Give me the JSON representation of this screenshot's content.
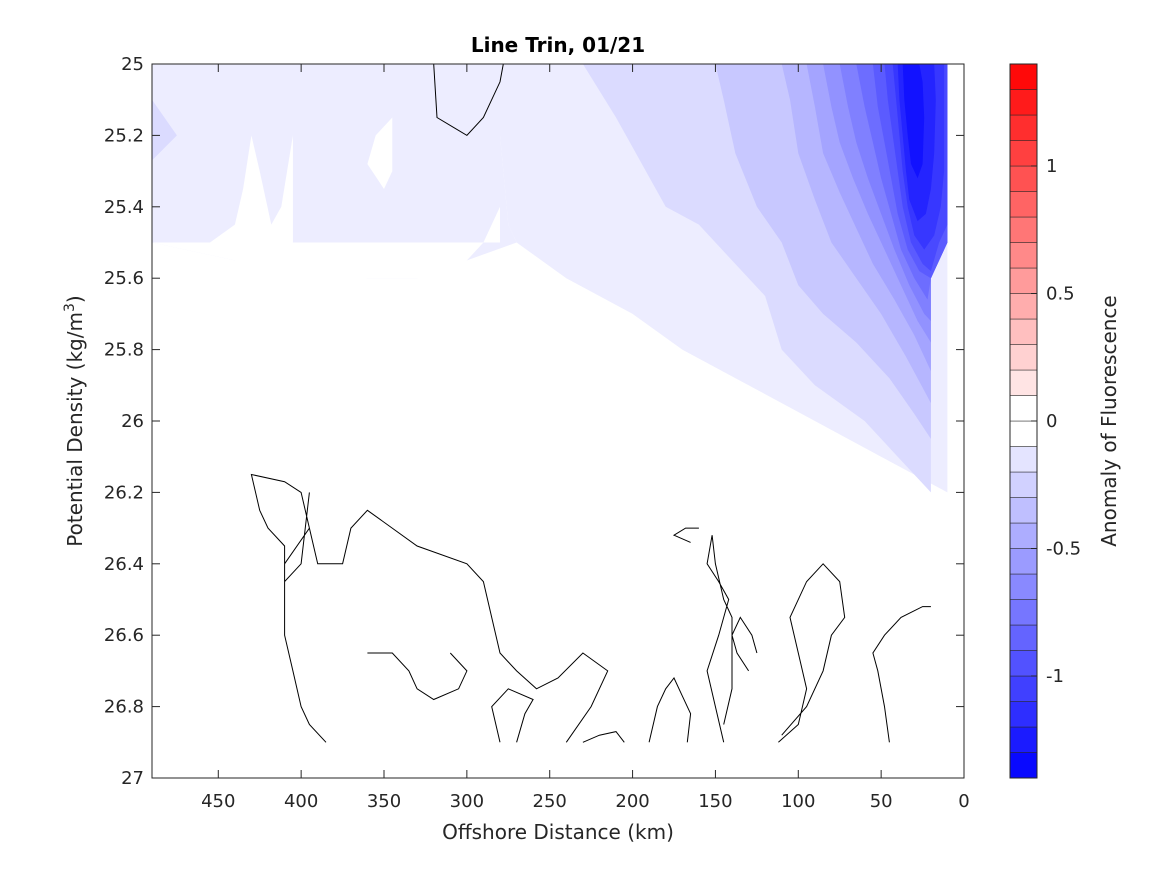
{
  "chart_data": {
    "type": "heatmap",
    "title": "Line Trin, 01/21",
    "xlabel": "Offshore Distance (km)",
    "ylabel": "Potential Density (kg/m",
    "ylabel_sup": "3",
    "ylabel_close": ")",
    "xlim": [
      490,
      0
    ],
    "ylim": [
      25,
      27
    ],
    "x_reversed": true,
    "y_reversed": true,
    "x_ticks": [
      450,
      400,
      350,
      300,
      250,
      200,
      150,
      100,
      50,
      0
    ],
    "y_ticks": [
      25,
      25.2,
      25.4,
      25.6,
      25.8,
      26,
      26.2,
      26.4,
      26.6,
      26.8,
      27
    ],
    "x_tick_labels": [
      "450",
      "400",
      "350",
      "300",
      "250",
      "200",
      "150",
      "100",
      "50",
      "0"
    ],
    "y_tick_labels": [
      "25",
      "25.2",
      "25.4",
      "25.6",
      "25.8",
      "26",
      "26.2",
      "26.4",
      "26.6",
      "26.8",
      "27"
    ],
    "grid": false,
    "colorbar": {
      "label": "Anomaly of Fluorescence",
      "limits": [
        -1.4,
        1.4
      ],
      "ticks": [
        -1,
        -0.5,
        0,
        0.5,
        1
      ],
      "tick_labels": [
        "-1",
        "-0.5",
        "0",
        "0.5",
        "1"
      ],
      "levels": 28,
      "negative_color": "#0000ff",
      "positive_color": "#ff0000",
      "neutral_color": "#ffffff"
    },
    "filled_regions": [
      {
        "level": -0.1,
        "points": [
          [
            490,
            25
          ],
          [
            280,
            25
          ],
          [
            280,
            25.2
          ],
          [
            275,
            25.45
          ],
          [
            270,
            25.5
          ],
          [
            300,
            25.55
          ],
          [
            330,
            25.6
          ],
          [
            360,
            25.6
          ],
          [
            400,
            25.58
          ],
          [
            440,
            25.55
          ],
          [
            490,
            25.5
          ]
        ]
      },
      {
        "level": -0.1,
        "points": [
          [
            280,
            25
          ],
          [
            10,
            25
          ],
          [
            10,
            26.2
          ],
          [
            50,
            26.1
          ],
          [
            90,
            26
          ],
          [
            130,
            25.9
          ],
          [
            170,
            25.8
          ],
          [
            200,
            25.7
          ],
          [
            240,
            25.6
          ],
          [
            270,
            25.5
          ],
          [
            275,
            25.45
          ],
          [
            280,
            25.2
          ]
        ]
      },
      {
        "level": -0.2,
        "points": [
          [
            490,
            25.1
          ],
          [
            475,
            25.2
          ],
          [
            490,
            25.27
          ]
        ]
      },
      {
        "level": -0.2,
        "points": [
          [
            230,
            25
          ],
          [
            210,
            25.15
          ],
          [
            180,
            25.4
          ],
          [
            160,
            25.45
          ],
          [
            140,
            25.55
          ],
          [
            120,
            25.65
          ],
          [
            110,
            25.8
          ],
          [
            90,
            25.9
          ],
          [
            60,
            26.0
          ],
          [
            40,
            26.1
          ],
          [
            20,
            26.2
          ],
          [
            20,
            25.6
          ],
          [
            10,
            25.5
          ],
          [
            10,
            25
          ]
        ]
      },
      {
        "level": -0.3,
        "points": [
          [
            150,
            25
          ],
          [
            145,
            25.1
          ],
          [
            138,
            25.25
          ],
          [
            125,
            25.4
          ],
          [
            110,
            25.5
          ],
          [
            100,
            25.62
          ],
          [
            85,
            25.7
          ],
          [
            65,
            25.78
          ],
          [
            45,
            25.88
          ],
          [
            30,
            25.98
          ],
          [
            20,
            26.05
          ],
          [
            20,
            25.6
          ],
          [
            10,
            25.5
          ],
          [
            10,
            25
          ]
        ]
      },
      {
        "level": -0.4,
        "points": [
          [
            110,
            25
          ],
          [
            105,
            25.1
          ],
          [
            100,
            25.25
          ],
          [
            90,
            25.38
          ],
          [
            80,
            25.5
          ],
          [
            65,
            25.6
          ],
          [
            50,
            25.7
          ],
          [
            35,
            25.82
          ],
          [
            20,
            25.95
          ],
          [
            20,
            25.6
          ],
          [
            10,
            25.5
          ],
          [
            10,
            25
          ]
        ]
      },
      {
        "level": -0.5,
        "points": [
          [
            95,
            25
          ],
          [
            90,
            25.12
          ],
          [
            85,
            25.25
          ],
          [
            75,
            25.36
          ],
          [
            65,
            25.46
          ],
          [
            55,
            25.56
          ],
          [
            42,
            25.66
          ],
          [
            30,
            25.76
          ],
          [
            20,
            25.86
          ],
          [
            20,
            25.6
          ],
          [
            10,
            25.5
          ],
          [
            10,
            25
          ]
        ]
      },
      {
        "level": -0.6,
        "points": [
          [
            85,
            25
          ],
          [
            80,
            25.12
          ],
          [
            75,
            25.22
          ],
          [
            67,
            25.32
          ],
          [
            58,
            25.42
          ],
          [
            48,
            25.52
          ],
          [
            38,
            25.62
          ],
          [
            28,
            25.72
          ],
          [
            20,
            25.78
          ],
          [
            20,
            25.6
          ],
          [
            10,
            25.5
          ],
          [
            10,
            25
          ]
        ]
      },
      {
        "level": -0.7,
        "points": [
          [
            75,
            25
          ],
          [
            70,
            25.12
          ],
          [
            65,
            25.22
          ],
          [
            58,
            25.32
          ],
          [
            50,
            25.42
          ],
          [
            42,
            25.52
          ],
          [
            33,
            25.62
          ],
          [
            24,
            25.7
          ],
          [
            20,
            25.72
          ],
          [
            20,
            25.6
          ],
          [
            10,
            25.5
          ],
          [
            10,
            25
          ]
        ]
      },
      {
        "level": -0.8,
        "points": [
          [
            65,
            25
          ],
          [
            60,
            25.12
          ],
          [
            55,
            25.22
          ],
          [
            50,
            25.32
          ],
          [
            44,
            25.42
          ],
          [
            38,
            25.52
          ],
          [
            30,
            25.6
          ],
          [
            22,
            25.66
          ],
          [
            20,
            25.6
          ],
          [
            10,
            25.5
          ],
          [
            10,
            25
          ]
        ]
      },
      {
        "level": -0.9,
        "points": [
          [
            55,
            25
          ],
          [
            52,
            25.12
          ],
          [
            48,
            25.22
          ],
          [
            44,
            25.32
          ],
          [
            40,
            25.42
          ],
          [
            34,
            25.52
          ],
          [
            27,
            25.58
          ],
          [
            20,
            25.6
          ],
          [
            10,
            25.5
          ],
          [
            10,
            25
          ]
        ]
      },
      {
        "level": -1.0,
        "points": [
          [
            48,
            25
          ],
          [
            46,
            25.1
          ],
          [
            43,
            25.2
          ],
          [
            40,
            25.3
          ],
          [
            37,
            25.4
          ],
          [
            32,
            25.5
          ],
          [
            25,
            25.56
          ],
          [
            20,
            25.58
          ],
          [
            15,
            25.5
          ],
          [
            10,
            25.45
          ],
          [
            10,
            25
          ]
        ]
      },
      {
        "level": -1.1,
        "points": [
          [
            43,
            25
          ],
          [
            41,
            25.1
          ],
          [
            39,
            25.2
          ],
          [
            37,
            25.3
          ],
          [
            34,
            25.4
          ],
          [
            30,
            25.48
          ],
          [
            24,
            25.52
          ],
          [
            18,
            25.48
          ],
          [
            14,
            25.4
          ],
          [
            12,
            25.3
          ],
          [
            12,
            25
          ]
        ]
      },
      {
        "level": -1.2,
        "points": [
          [
            40,
            25
          ],
          [
            39,
            25.1
          ],
          [
            37,
            25.2
          ],
          [
            35,
            25.3
          ],
          [
            33,
            25.38
          ],
          [
            28,
            25.44
          ],
          [
            23,
            25.42
          ],
          [
            20,
            25.35
          ],
          [
            18,
            25.25
          ],
          [
            17,
            25.1
          ],
          [
            18,
            25
          ]
        ]
      },
      {
        "level": -1.3,
        "points": [
          [
            37,
            25
          ],
          [
            36,
            25.1
          ],
          [
            34,
            25.2
          ],
          [
            32,
            25.28
          ],
          [
            28,
            25.32
          ],
          [
            25,
            25.28
          ],
          [
            24,
            25.15
          ],
          [
            25,
            25.05
          ],
          [
            27,
            25
          ]
        ]
      }
    ],
    "white_patches": [
      {
        "points": [
          [
            490,
            25.5
          ],
          [
            440,
            25.55
          ],
          [
            420,
            25.58
          ],
          [
            380,
            25.6
          ],
          [
            320,
            25.6
          ],
          [
            300,
            25.55
          ],
          [
            290,
            25.5
          ],
          [
            280,
            25.4
          ],
          [
            280,
            25.5
          ],
          [
            280,
            25.5
          ]
        ]
      },
      {
        "points": [
          [
            455,
            25.5
          ],
          [
            440,
            25.45
          ],
          [
            435,
            25.35
          ],
          [
            430,
            25.2
          ],
          [
            425,
            25.3
          ],
          [
            418,
            25.45
          ],
          [
            412,
            25.4
          ],
          [
            405,
            25.2
          ],
          [
            405,
            25.55
          ]
        ]
      },
      {
        "points": [
          [
            345,
            25.15
          ],
          [
            355,
            25.2
          ],
          [
            360,
            25.28
          ],
          [
            350,
            25.35
          ],
          [
            345,
            25.3
          ]
        ]
      }
    ],
    "contour_lines": [
      [
        [
          320,
          25
        ],
        [
          318,
          25.15
        ],
        [
          300,
          25.2
        ],
        [
          290,
          25.15
        ],
        [
          280,
          25.05
        ],
        [
          278,
          25
        ]
      ],
      [
        [
          360,
          26.65
        ],
        [
          345,
          26.65
        ],
        [
          335,
          26.7
        ],
        [
          330,
          26.75
        ],
        [
          320,
          26.78
        ],
        [
          305,
          26.75
        ],
        [
          300,
          26.7
        ],
        [
          310,
          26.65
        ]
      ],
      [
        [
          385,
          26.9
        ],
        [
          395,
          26.85
        ],
        [
          400,
          26.8
        ],
        [
          405,
          26.7
        ],
        [
          410,
          26.6
        ],
        [
          410,
          26.4
        ],
        [
          395,
          26.3
        ],
        [
          400,
          26.2
        ],
        [
          410,
          26.17
        ],
        [
          430,
          26.15
        ],
        [
          425,
          26.25
        ],
        [
          420,
          26.3
        ],
        [
          410,
          26.35
        ],
        [
          410,
          26.45
        ],
        [
          400,
          26.4
        ],
        [
          395,
          26.2
        ]
      ],
      [
        [
          270,
          26.9
        ],
        [
          265,
          26.82
        ],
        [
          260,
          26.78
        ],
        [
          275,
          26.75
        ],
        [
          285,
          26.8
        ],
        [
          280,
          26.9
        ]
      ],
      [
        [
          240,
          26.9
        ],
        [
          225,
          26.8
        ],
        [
          215,
          26.7
        ],
        [
          230,
          26.65
        ],
        [
          245,
          26.72
        ],
        [
          258,
          26.75
        ],
        [
          270,
          26.7
        ],
        [
          280,
          26.65
        ],
        [
          285,
          26.55
        ],
        [
          290,
          26.45
        ],
        [
          300,
          26.4
        ],
        [
          330,
          26.35
        ],
        [
          360,
          26.25
        ],
        [
          370,
          26.3
        ],
        [
          375,
          26.4
        ],
        [
          390,
          26.4
        ],
        [
          395,
          26.3
        ]
      ],
      [
        [
          130,
          26.7
        ],
        [
          137,
          26.65
        ],
        [
          140,
          26.6
        ],
        [
          135,
          26.55
        ],
        [
          128,
          26.6
        ],
        [
          125,
          26.65
        ]
      ],
      [
        [
          112,
          26.9
        ],
        [
          100,
          26.85
        ],
        [
          95,
          26.75
        ],
        [
          100,
          26.65
        ],
        [
          105,
          26.55
        ],
        [
          95,
          26.45
        ],
        [
          85,
          26.4
        ],
        [
          75,
          26.45
        ],
        [
          72,
          26.55
        ],
        [
          80,
          26.6
        ],
        [
          85,
          26.7
        ],
        [
          95,
          26.8
        ],
        [
          110,
          26.88
        ]
      ],
      [
        [
          160,
          26.3
        ],
        [
          168,
          26.3
        ],
        [
          175,
          26.32
        ],
        [
          165,
          26.34
        ]
      ],
      [
        [
          145,
          26.9
        ],
        [
          150,
          26.8
        ],
        [
          155,
          26.7
        ],
        [
          148,
          26.6
        ],
        [
          142,
          26.5
        ],
        [
          148,
          26.45
        ],
        [
          155,
          26.4
        ],
        [
          152,
          26.32
        ],
        [
          150,
          26.4
        ],
        [
          145,
          26.5
        ],
        [
          140,
          26.55
        ],
        [
          140,
          26.75
        ],
        [
          145,
          26.85
        ]
      ],
      [
        [
          45,
          26.9
        ],
        [
          48,
          26.8
        ],
        [
          52,
          26.7
        ],
        [
          55,
          26.65
        ],
        [
          48,
          26.6
        ],
        [
          38,
          26.55
        ],
        [
          25,
          26.52
        ],
        [
          20,
          26.52
        ]
      ],
      [
        [
          205,
          26.9
        ],
        [
          210,
          26.87
        ],
        [
          220,
          26.88
        ],
        [
          230,
          26.9
        ]
      ],
      [
        [
          190,
          26.9
        ],
        [
          185,
          26.8
        ],
        [
          180,
          26.75
        ],
        [
          175,
          26.72
        ],
        [
          170,
          26.77
        ],
        [
          165,
          26.82
        ],
        [
          167,
          26.9
        ]
      ]
    ]
  }
}
